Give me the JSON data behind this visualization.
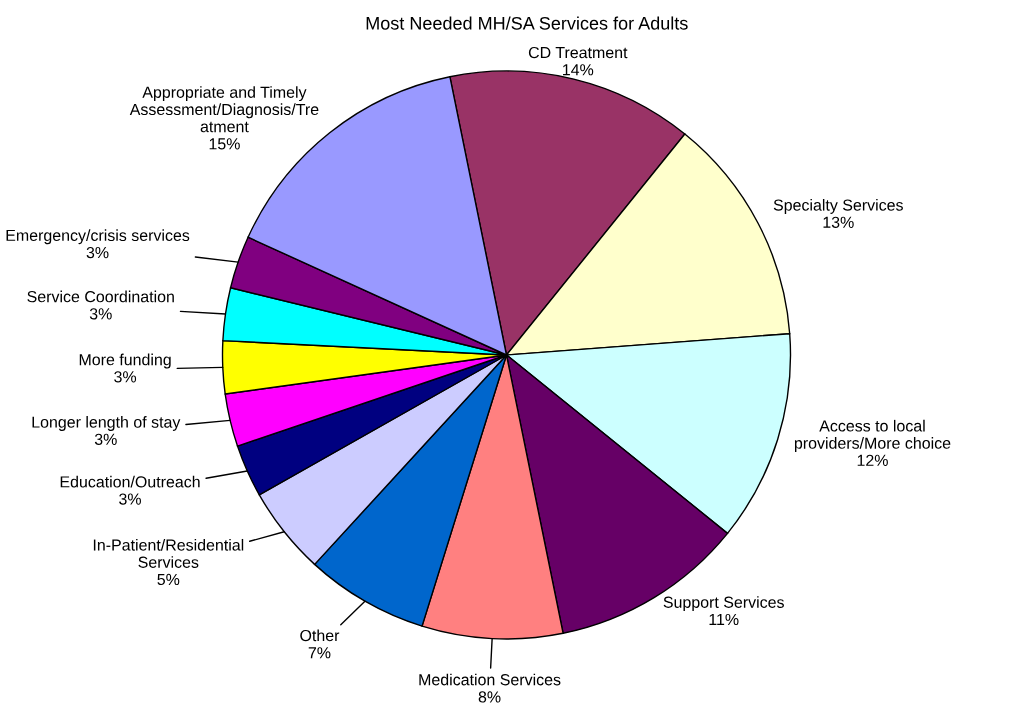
{
  "chart_data": {
    "type": "pie",
    "title": "Most Needed MH/SA Services for Adults",
    "categories": [
      "CD Treatment",
      "Specialty Services",
      "Access to local\nproviders/More choice",
      "Support Services",
      "Medication Services",
      "Other",
      "In-Patient/Residential\nServices",
      "Education/Outreach",
      "Longer length of stay",
      "More funding",
      "Service Coordination",
      "Emergency/crisis services",
      "Appropriate and Timely\nAssessment/Diagnosis/Tre\natment"
    ],
    "values": [
      14,
      13,
      12,
      11,
      8,
      7,
      5,
      3,
      3,
      3,
      3,
      3,
      15
    ],
    "value_labels": [
      "14%",
      "13%",
      "12%",
      "11%",
      "8%",
      "7%",
      "5%",
      "3%",
      "3%",
      "3%",
      "3%",
      "3%",
      "15%"
    ],
    "colors": [
      "#993366",
      "#ffffcc",
      "#ccffff",
      "#660066",
      "#ff8080",
      "#0066cc",
      "#ccccff",
      "#000080",
      "#ff00ff",
      "#ffff00",
      "#00ffff",
      "#800080",
      "#9999ff"
    ]
  }
}
